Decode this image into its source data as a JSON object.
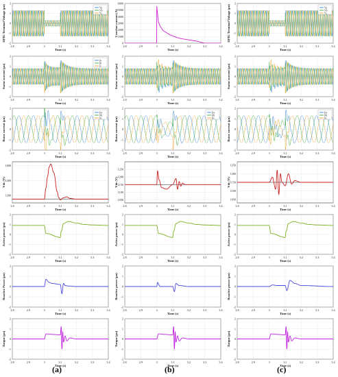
{
  "figure": {
    "column_labels": [
      "(a)",
      "(b)",
      "(c)"
    ],
    "time_label": "Time (s)",
    "colors": {
      "phase_a": "#1f77d4",
      "phase_b": "#2aa02a",
      "phase_c": "#e8a020",
      "crowbar": "#d020d0",
      "vdc": "#c81e1e",
      "vdc_ref": "#222222",
      "active": "#7fb020",
      "reactive": "#4a48e0",
      "torque": "#c020e0"
    }
  },
  "chart_data": [
    {
      "type": "line",
      "row": "dfig_voltage",
      "column": "(a)",
      "ylabel": "DFIG Terminal Voltage (pu)",
      "xlabel": "Time (s)",
      "xlim": [
        2.8,
        3.4
      ],
      "ylim": [
        -2,
        2
      ],
      "xticks": [
        2.8,
        2.9,
        3,
        3.1,
        3.2,
        3.3,
        3.4
      ],
      "yticks": [
        -2,
        -1,
        0,
        1,
        2
      ],
      "legend": [
        "Va",
        "Vb",
        "Vc"
      ],
      "description": "three-phase sinusoids, amplitude ~1.3 pu, sag to ~0.3 pu between 3.0 and 3.1 s",
      "series": [
        {
          "name": "Va",
          "amplitude_pre": 1.3,
          "amplitude_fault": 0.3,
          "fault": [
            3.0,
            3.1
          ]
        }
      ]
    },
    {
      "type": "line",
      "row": "crowbar_current",
      "column": "(b)",
      "ylabel": "Crowbar current (A)",
      "xlabel": "Time (s)",
      "xlim": [
        2.8,
        3.4
      ],
      "ylim": [
        0,
        6000
      ],
      "xticks": [
        2.8,
        2.9,
        3,
        3.1,
        3.2,
        3.3,
        3.4
      ],
      "yticks": [
        0,
        1000,
        2000,
        3000,
        4000,
        5000,
        6000
      ],
      "x": [
        2.8,
        2.999,
        3.0,
        3.01,
        3.02,
        3.04,
        3.06,
        3.08,
        3.1,
        3.12,
        3.15,
        3.2,
        3.25,
        3.3,
        3.4
      ],
      "values": [
        0,
        0,
        5600,
        3200,
        2600,
        1900,
        1600,
        1300,
        1100,
        900,
        700,
        500,
        300,
        0,
        0
      ]
    },
    {
      "type": "line",
      "row": "dfig_voltage",
      "column": "(c)",
      "ylabel": "DFIG Terminal Voltage (pu)",
      "xlabel": "Time (s)",
      "xlim": [
        2.8,
        3.4
      ],
      "ylim": [
        -2,
        2
      ],
      "xticks": [
        2.8,
        2.9,
        3,
        3.1,
        3.2,
        3.3,
        3.4
      ],
      "yticks": [
        -2,
        -1,
        0,
        1,
        2
      ],
      "legend": [
        "Va",
        "Vb",
        "Vc"
      ]
    },
    {
      "type": "line",
      "row": "stator_current",
      "column": "(a)",
      "ylabel": "Stator current (pu)",
      "xlabel": "Time (s)",
      "xlim": [
        2.8,
        3.4
      ],
      "ylim": [
        -2,
        2
      ],
      "xticks": [
        2.8,
        2.9,
        3,
        3.1,
        3.2,
        3.3,
        3.4
      ],
      "yticks": [
        -2,
        -1,
        0,
        1,
        2
      ],
      "legend": [
        "Ia",
        "Ib",
        "Ic"
      ]
    },
    {
      "type": "line",
      "row": "stator_current",
      "column": "(b)",
      "ylabel": "Stator current (pu)",
      "xlabel": "Time (s)",
      "xlim": [
        2.8,
        3.4
      ],
      "ylim": [
        -2,
        2
      ],
      "xticks": [
        2.8,
        2.9,
        3,
        3.1,
        3.2,
        3.3,
        3.4
      ],
      "yticks": [
        -2,
        -1,
        0,
        1,
        2
      ]
    },
    {
      "type": "line",
      "row": "stator_current",
      "column": "(c)",
      "ylabel": "Stator current (pu)",
      "xlabel": "Time (s)",
      "xlim": [
        2.8,
        3.4
      ],
      "ylim": [
        -2,
        2
      ],
      "xticks": [
        2.8,
        2.9,
        3,
        3.1,
        3.2,
        3.3,
        3.4
      ],
      "yticks": [
        -2,
        -1,
        0,
        1,
        2
      ]
    },
    {
      "type": "line",
      "row": "rotor_current",
      "column": "(a)",
      "ylabel": "Rotor current (pu)",
      "xlabel": "Time (s)",
      "xlim": [
        2.8,
        3.4
      ],
      "ylim": [
        -2,
        2
      ],
      "xticks": [
        2.8,
        2.9,
        3,
        3.1,
        3.2,
        3.3,
        3.4
      ],
      "yticks": [
        -2,
        -1,
        0,
        1,
        2
      ],
      "legend": [
        "Ira",
        "Irb",
        "Irc"
      ]
    },
    {
      "type": "line",
      "row": "rotor_current",
      "column": "(b)",
      "ylabel": "Rotor current (pu)",
      "xlabel": "Time (s)",
      "xlim": [
        2.8,
        3.4
      ],
      "ylim": [
        -2,
        2
      ],
      "xticks": [
        2.8,
        2.9,
        3,
        3.1,
        3.2,
        3.3,
        3.4
      ],
      "yticks": [
        -2,
        -1,
        0,
        1,
        2
      ],
      "legend": [
        "Ira",
        "Irb",
        "Irc"
      ]
    },
    {
      "type": "line",
      "row": "rotor_current",
      "column": "(c)",
      "ylabel": "Rotor current (pu)",
      "xlabel": "Time (s)",
      "xlim": [
        2.8,
        3.4
      ],
      "ylim": [
        -2,
        2
      ],
      "xticks": [
        2.8,
        2.9,
        3,
        3.1,
        3.2,
        3.3,
        3.4
      ],
      "yticks": [
        -2,
        -1,
        0,
        1,
        2
      ],
      "legend": [
        "Ira",
        "Irb",
        "Irc"
      ]
    },
    {
      "type": "line",
      "row": "vdc",
      "column": "(a)",
      "ylabel": "Vdc (V)",
      "xlabel": "Time (s)",
      "xlim": [
        2.8,
        3.4
      ],
      "ylim": [
        1100,
        1650
      ],
      "xticks": [
        2.8,
        2.9,
        3,
        3.1,
        3.2,
        3.3,
        3.4
      ],
      "yticks": [
        1200,
        1400,
        1600
      ],
      "x": [
        2.8,
        3.0,
        3.01,
        3.02,
        3.03,
        3.04,
        3.06,
        3.08,
        3.09,
        3.1,
        3.12,
        3.14,
        3.16,
        3.2,
        3.4
      ],
      "values": [
        1150,
        1150,
        1300,
        1450,
        1580,
        1620,
        1500,
        1250,
        1170,
        1140,
        1170,
        1180,
        1160,
        1150,
        1150
      ]
    },
    {
      "type": "line",
      "row": "vdc",
      "column": "(b)",
      "ylabel": "Vdc (V)",
      "xlabel": "Time (s)",
      "xlim": [
        2.8,
        3.4
      ],
      "ylim": [
        1030,
        1300
      ],
      "xticks": [
        2.8,
        2.9,
        3,
        3.1,
        3.2,
        3.3,
        3.4
      ],
      "yticks": [
        1050,
        1100,
        1150,
        1200,
        1250
      ],
      "x": [
        2.8,
        3.0,
        3.005,
        3.015,
        3.03,
        3.06,
        3.1,
        3.12,
        3.13,
        3.14,
        3.15,
        3.16,
        3.18,
        3.2,
        3.4
      ],
      "values": [
        1150,
        1150,
        1240,
        1180,
        1130,
        1120,
        1150,
        1190,
        1120,
        1170,
        1140,
        1160,
        1150,
        1150,
        1150
      ]
    },
    {
      "type": "line",
      "row": "vdc",
      "column": "(c)",
      "ylabel": "Vdc (V)",
      "xlabel": "Time (s)",
      "xlim": [
        2.8,
        3.4
      ],
      "ylim": [
        1030,
        1270
      ],
      "xticks": [
        2.8,
        2.9,
        3,
        3.1,
        3.2,
        3.3,
        3.4
      ],
      "yticks": [
        1050,
        1100,
        1150,
        1200,
        1250
      ],
      "x": [
        2.8,
        3.0,
        3.02,
        3.04,
        3.05,
        3.06,
        3.07,
        3.08,
        3.1,
        3.12,
        3.14,
        3.16,
        3.2,
        3.4
      ],
      "values": [
        1150,
        1150,
        1180,
        1110,
        1220,
        1080,
        1200,
        1150,
        1130,
        1200,
        1140,
        1160,
        1150,
        1150
      ]
    },
    {
      "type": "line",
      "row": "active_power",
      "column": "(a)",
      "ylabel": "Active power (pu)",
      "xlabel": "Time (s)",
      "xlim": [
        2.8,
        3.4
      ],
      "ylim": [
        -2,
        2
      ],
      "xticks": [
        2.8,
        2.9,
        3,
        3.1,
        3.2,
        3.3,
        3.4
      ],
      "yticks": [
        -2,
        -1,
        0,
        1,
        2
      ],
      "x": [
        2.8,
        3.0,
        3.01,
        3.1,
        3.105,
        3.12,
        3.15,
        3.2,
        3.25,
        3.3,
        3.4
      ],
      "values": [
        0.9,
        0.9,
        0.1,
        -0.3,
        0.3,
        1.1,
        1.3,
        1.15,
        1.0,
        0.95,
        0.9
      ]
    },
    {
      "type": "line",
      "row": "active_power",
      "column": "(b)",
      "ylabel": "Active power (pu)",
      "xlabel": "Time (s)",
      "xlim": [
        2.8,
        3.4
      ],
      "ylim": [
        -2,
        2
      ],
      "xticks": [
        2.8,
        2.9,
        3,
        3.1,
        3.2,
        3.3,
        3.4
      ],
      "yticks": [
        -2,
        -1,
        0,
        1,
        2
      ],
      "x": [
        2.8,
        3.0,
        3.01,
        3.1,
        3.105,
        3.12,
        3.15,
        3.2,
        3.25,
        3.3,
        3.4
      ],
      "values": [
        0.9,
        0.9,
        0.1,
        -0.3,
        0.3,
        1.1,
        1.3,
        1.15,
        1.0,
        0.95,
        0.9
      ]
    },
    {
      "type": "line",
      "row": "active_power",
      "column": "(c)",
      "ylabel": "Active power (pu)",
      "xlabel": "Time (s)",
      "xlim": [
        2.8,
        3.4
      ],
      "ylim": [
        -2,
        2
      ],
      "xticks": [
        2.8,
        2.9,
        3,
        3.1,
        3.2,
        3.3,
        3.4
      ],
      "yticks": [
        -2,
        -1,
        0,
        1,
        2
      ],
      "x": [
        2.8,
        3.0,
        3.01,
        3.1,
        3.105,
        3.12,
        3.15,
        3.2,
        3.25,
        3.3,
        3.4
      ],
      "values": [
        0.9,
        0.9,
        0.1,
        -0.3,
        0.3,
        1.1,
        1.3,
        1.15,
        1.0,
        0.95,
        0.9
      ]
    },
    {
      "type": "line",
      "row": "reactive_power",
      "column": "(a)",
      "ylabel": "Reactive Power (pu)",
      "xlabel": "Time (s)",
      "xlim": [
        2.8,
        3.4
      ],
      "ylim": [
        -2,
        2
      ],
      "xticks": [
        2.8,
        2.9,
        3,
        3.1,
        3.2,
        3.3,
        3.4
      ],
      "yticks": [
        -2,
        -1,
        0,
        1,
        2
      ],
      "x": [
        2.8,
        3.0,
        3.01,
        3.03,
        3.05,
        3.1,
        3.11,
        3.12,
        3.13,
        3.15,
        3.2,
        3.4
      ],
      "values": [
        0,
        0,
        0.7,
        0.4,
        0.3,
        0.2,
        -0.7,
        0.3,
        0.1,
        0.05,
        0,
        0
      ]
    },
    {
      "type": "line",
      "row": "reactive_power",
      "column": "(b)",
      "ylabel": "Reactive power (pu)",
      "xlabel": "Time (s)",
      "xlim": [
        2.8,
        3.4
      ],
      "ylim": [
        -2,
        2
      ],
      "xticks": [
        2.8,
        2.9,
        3,
        3.1,
        3.2,
        3.3,
        3.4
      ],
      "yticks": [
        -2,
        -1,
        0,
        1,
        2
      ],
      "x": [
        2.8,
        3.0,
        3.005,
        3.02,
        3.1,
        3.11,
        3.12,
        3.14,
        3.2,
        3.4
      ],
      "values": [
        0,
        0,
        0.4,
        0,
        0,
        -0.5,
        0.3,
        0.1,
        0,
        0
      ]
    },
    {
      "type": "line",
      "row": "reactive_power",
      "column": "(c)",
      "ylabel": "Reactive power (pu)",
      "xlabel": "Time (s)",
      "xlim": [
        2.8,
        3.4
      ],
      "ylim": [
        -2,
        2
      ],
      "xticks": [
        2.8,
        2.9,
        3,
        3.1,
        3.2,
        3.3,
        3.4
      ],
      "yticks": [
        -2,
        -1,
        0,
        1,
        2
      ],
      "x": [
        2.8,
        3.0,
        3.02,
        3.05,
        3.1,
        3.11,
        3.13,
        3.16,
        3.2,
        3.4
      ],
      "values": [
        0,
        0,
        0.15,
        0.1,
        0.1,
        -0.4,
        0.6,
        0.3,
        0.1,
        0
      ]
    },
    {
      "type": "line",
      "row": "torque",
      "column": "(a)",
      "ylabel": "Torque (pu)",
      "xlabel": "Time (s)",
      "xlim": [
        2.8,
        3.4
      ],
      "ylim": [
        -2,
        2
      ],
      "xticks": [
        2.8,
        2.9,
        3,
        3.1,
        3.2,
        3.3,
        3.4
      ],
      "yticks": [
        -2,
        -1,
        0,
        1,
        2
      ],
      "x": [
        2.8,
        3.0,
        3.01,
        3.05,
        3.1,
        3.105,
        3.11,
        3.115,
        3.12,
        3.13,
        3.14,
        3.16,
        3.2,
        3.4
      ],
      "values": [
        0,
        0,
        0.5,
        0.45,
        0.4,
        1.2,
        -1.0,
        0.7,
        -0.3,
        0.3,
        -0.2,
        0.1,
        0,
        0
      ]
    },
    {
      "type": "line",
      "row": "torque",
      "column": "(b)",
      "ylabel": "Torque (pu)",
      "xlabel": "Time (s)",
      "xlim": [
        2.8,
        3.4
      ],
      "ylim": [
        -2,
        2
      ],
      "xticks": [
        2.8,
        2.9,
        3,
        3.1,
        3.2,
        3.3,
        3.4
      ],
      "yticks": [
        -2,
        -1,
        0,
        1,
        2
      ],
      "x": [
        2.8,
        3.0,
        3.01,
        3.05,
        3.1,
        3.105,
        3.11,
        3.115,
        3.12,
        3.13,
        3.14,
        3.16,
        3.2,
        3.4
      ],
      "values": [
        0,
        0,
        0.5,
        0.45,
        0.4,
        1.2,
        -1.0,
        0.7,
        -0.3,
        0.3,
        -0.2,
        0.1,
        0,
        0
      ]
    },
    {
      "type": "line",
      "row": "torque",
      "column": "(c)",
      "ylabel": "Torque (pu)",
      "xlabel": "Time (s)",
      "xlim": [
        2.8,
        3.4
      ],
      "ylim": [
        -2,
        2
      ],
      "xticks": [
        2.8,
        2.9,
        3,
        3.1,
        3.2,
        3.3,
        3.4
      ],
      "yticks": [
        -2,
        -1,
        0,
        1,
        2
      ],
      "x": [
        2.8,
        3.0,
        3.01,
        3.05,
        3.1,
        3.105,
        3.11,
        3.115,
        3.12,
        3.13,
        3.14,
        3.16,
        3.2,
        3.4
      ],
      "values": [
        0,
        0,
        0.5,
        0.45,
        0.4,
        1.2,
        -1.0,
        0.7,
        -0.3,
        0.3,
        -0.2,
        0.1,
        0,
        0
      ]
    }
  ]
}
